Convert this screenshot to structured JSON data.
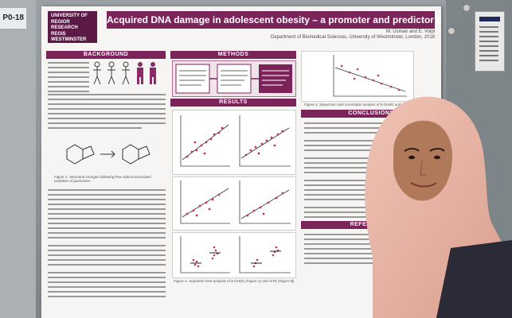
{
  "board": {
    "tag": "P0-18"
  },
  "poster": {
    "university": [
      "UNIVERSITY OF",
      "REGIOR",
      "RESEARCH",
      "REGIS",
      "WESTMINSTER"
    ],
    "title": "Acquired DNA damage in adolescent obesity – a promoter and predictor of cancer?",
    "authors": "M. Usman and E. Volpi",
    "department": "Department of Biomedical Sciences, University of Westminster, London, 2018",
    "sections": {
      "background": "BACKGROUND",
      "methods": "METHODS",
      "results": "RESULTS",
      "conclusions": "CONCLUSIONS",
      "references": "REFERENCES"
    },
    "figure_caption_1": "Figure 1. Structural changes following free radical-associated oxidation of guanosine",
    "figure_caption_3": "Figure 3. Spearman rank correlation analysis of 8-OHdG and GM-V",
    "figure_caption_4": "Figure 4. Unpaired t-test analysis of 8-OHdG (Figure A) and %TE (Figure B)"
  },
  "colors": {
    "accent": "#7b2459",
    "scarf": "#e8b4a4",
    "poster_bg": "#f7f5f4"
  }
}
